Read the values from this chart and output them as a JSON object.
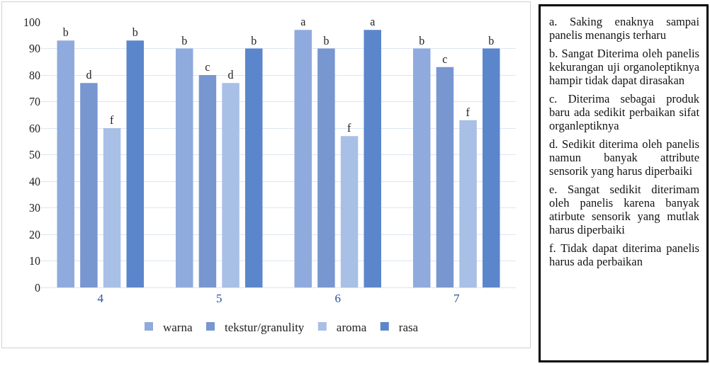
{
  "chart_data": {
    "type": "bar",
    "categories": [
      "4",
      "5",
      "6",
      "7"
    ],
    "series": [
      {
        "name": "warna",
        "color": "#8faadc",
        "values": [
          93,
          90,
          97,
          90
        ],
        "value_labels": [
          "b",
          "b",
          "a",
          "b"
        ]
      },
      {
        "name": "tekstur/granulity",
        "color": "#7896d0",
        "values": [
          77,
          80,
          90,
          83
        ],
        "value_labels": [
          "d",
          "c",
          "b",
          "c"
        ]
      },
      {
        "name": "aroma",
        "color": "#a8bfe6",
        "values": [
          60,
          77,
          57,
          63
        ],
        "value_labels": [
          "f",
          "d",
          "f",
          "f"
        ]
      },
      {
        "name": "rasa",
        "color": "#5b86cc",
        "values": [
          93,
          90,
          97,
          90
        ],
        "value_labels": [
          "b",
          "b",
          "a",
          "b"
        ]
      }
    ],
    "ylim": [
      0,
      100
    ],
    "yticks": [
      0,
      10,
      20,
      30,
      40,
      50,
      60,
      70,
      80,
      90,
      100
    ],
    "grid": "y",
    "legend": "bottom",
    "annotations": [
      "a. Saking enaknya sampai panelis menangis terharu",
      "b. Sangat Diterima oleh panelis kekurangan uji organoleptiknya hampir tidak dapat dirasakan",
      "c. Diterima sebagai produk baru ada sedikit perbaikan sifat organleptiknya",
      "d. Sedikit diterima oleh panelis namun banyak attribute sensorik yang harus diperbaiki",
      "e. Sangat sedikit diterimam oleh panelis karena banyak atirbute sensorik yang mutlak harus diperbaiki",
      "f. Tidak dapat diterima panelis harus ada perbaikan"
    ]
  }
}
